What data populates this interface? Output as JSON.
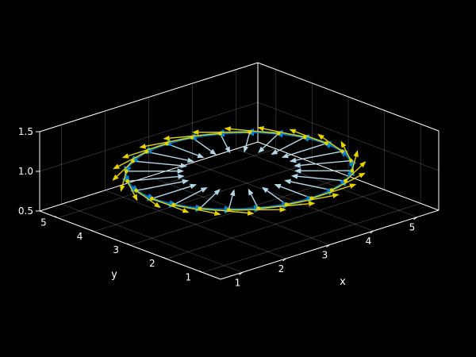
{
  "chart_data": {
    "type": "3d-quiver-curve",
    "xlabel": "x",
    "ylabel": "y",
    "zlabel": "",
    "xlim": [
      0.5,
      5.5
    ],
    "ylim": [
      0.5,
      5.5
    ],
    "zlim": [
      0.5,
      1.5
    ],
    "xticks": [
      1,
      2,
      3,
      4,
      5
    ],
    "yticks": [
      1,
      2,
      3,
      4,
      5
    ],
    "zticks": [
      0.5,
      1.0,
      1.5
    ],
    "zticklabels": [
      "0.5",
      "1.0",
      "1.5"
    ],
    "grid": true,
    "curve": {
      "center": [
        3,
        3
      ],
      "radius": 2,
      "z": 1,
      "samples": 24,
      "color": "#0072bd"
    },
    "normal_vectors": {
      "length": 1,
      "color": "#b0d8e8"
    },
    "tangent_vectors": {
      "length": 1,
      "color": "#e6d200"
    },
    "colors": {
      "background": "#000000",
      "axes": "#ffffff"
    }
  }
}
